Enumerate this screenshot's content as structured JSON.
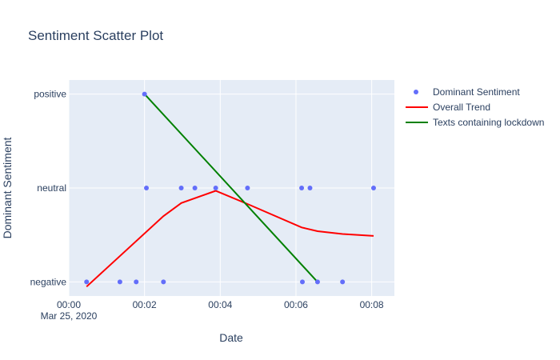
{
  "chart_data": {
    "type": "scatter",
    "title": "Sentiment Scatter Plot",
    "xlabel": "Date",
    "ylabel": "Dominant Sentiment",
    "x_date_label": "Mar 25, 2020",
    "x_range_minutes": [
      0,
      8.6
    ],
    "x_ticks": [
      {
        "value": 0,
        "label": "00:00"
      },
      {
        "value": 2,
        "label": "00:02"
      },
      {
        "value": 4,
        "label": "00:04"
      },
      {
        "value": 6,
        "label": "00:06"
      },
      {
        "value": 8,
        "label": "00:08"
      }
    ],
    "categories": [
      "negative",
      "neutral",
      "positive"
    ],
    "y_range": [
      -0.15,
      2.15
    ],
    "grid": true,
    "legend_position": "top-right",
    "series": [
      {
        "name": "Dominant Sentiment",
        "mode": "markers",
        "color": "#636efa",
        "x": [
          0.47,
          1.35,
          1.78,
          2.0,
          2.05,
          2.5,
          2.97,
          3.33,
          3.88,
          4.72,
          6.15,
          6.17,
          6.37,
          6.57,
          7.23,
          8.05
        ],
        "y": [
          0,
          0,
          0,
          2,
          1,
          0,
          1,
          1,
          1,
          1,
          1,
          0,
          1,
          0,
          0,
          1
        ]
      },
      {
        "name": "Overall Trend",
        "mode": "lines",
        "color": "#ff0000",
        "x": [
          0.47,
          2.5,
          2.97,
          3.88,
          4.72,
          6.15,
          6.57,
          7.23,
          8.05
        ],
        "y": [
          -0.05,
          0.7,
          0.84,
          0.97,
          0.83,
          0.58,
          0.54,
          0.51,
          0.49
        ]
      },
      {
        "name": "Texts containing lockdown",
        "mode": "lines",
        "color": "#008000",
        "x": [
          2.0,
          6.57
        ],
        "y": [
          2,
          0
        ]
      }
    ]
  }
}
